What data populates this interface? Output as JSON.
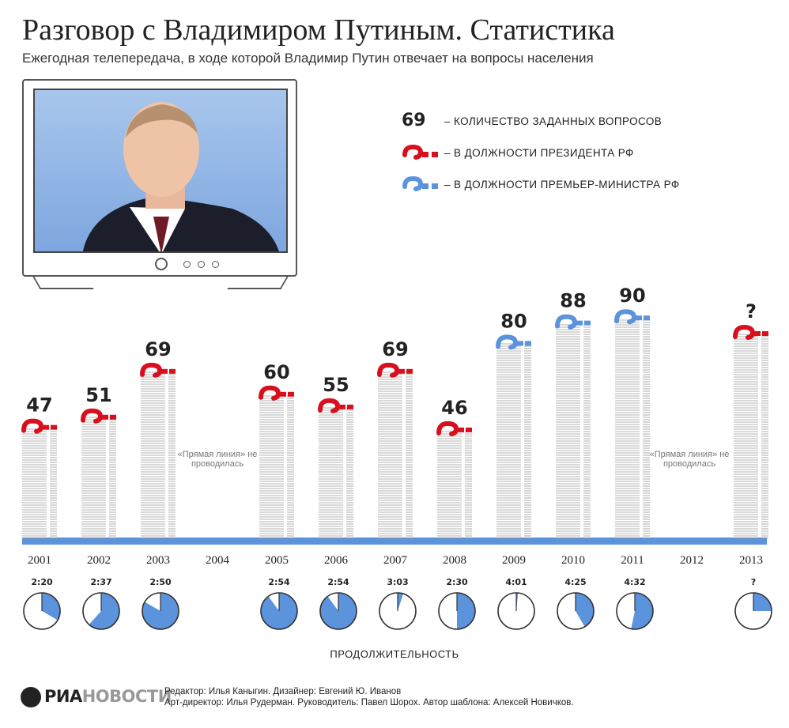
{
  "title": "Разговор с Владимиром Путиным. Статистика",
  "subtitle": "Ежегодная телепередача, в ходе которой Владимир Путин отвечает на вопросы населения",
  "legend": {
    "count_key": "69",
    "count_label": "– КОЛИЧЕСТВО ЗАДАННЫХ ВОПРОСОВ",
    "president_label": "– В ДОЛЖНОСТИ ПРЕЗИДЕНТА РФ",
    "pm_label": "– В ДОЛЖНОСТИ ПРЕМЬЕР-МИНИСТРА РФ"
  },
  "colors": {
    "president": "#d8101e",
    "pm": "#5b93dd",
    "baseline": "#5b93dd",
    "stack": "#9a9a9a"
  },
  "icons": {
    "tv": "tv-icon",
    "clock": "clock-icon",
    "question": "question-mark-icon"
  },
  "chart_data": {
    "type": "bar",
    "categories": [
      "2001",
      "2002",
      "2003",
      "2004",
      "2005",
      "2006",
      "2007",
      "2008",
      "2009",
      "2010",
      "2011",
      "2012",
      "2013"
    ],
    "values": [
      47,
      51,
      69,
      null,
      60,
      55,
      69,
      46,
      80,
      88,
      90,
      null,
      null
    ],
    "value_labels": [
      "47",
      "51",
      "69",
      "",
      "60",
      "55",
      "69",
      "46",
      "80",
      "88",
      "90",
      "",
      "?"
    ],
    "role": [
      "president",
      "president",
      "president",
      "none",
      "president",
      "president",
      "president",
      "president",
      "pm",
      "pm",
      "pm",
      "none",
      "president"
    ],
    "durations": [
      "2:20",
      "2:37",
      "2:50",
      "",
      "2:54",
      "2:54",
      "3:03",
      "2:30",
      "4:01",
      "4:25",
      "4:32",
      "",
      "?"
    ],
    "duration_minutes": [
      140,
      157,
      170,
      null,
      174,
      174,
      183,
      150,
      241,
      265,
      272,
      null,
      null
    ],
    "not_held_note": "«Прямая линия» не проводилась",
    "xlabel": "ПРОДОЛЖИТЕЛЬНОСТЬ"
  },
  "footer": {
    "logo_ria": "РИА",
    "logo_novosti": "НОВОСТИ",
    "credits_line1": "Редактор: Илья Каныгин. Дизайнер: Евгений Ю. Иванов",
    "credits_line2": "Арт-директор: Илья Рудерман. Руководитель: Павел Шорох. Автор шаблона: Алексей Новичков."
  }
}
